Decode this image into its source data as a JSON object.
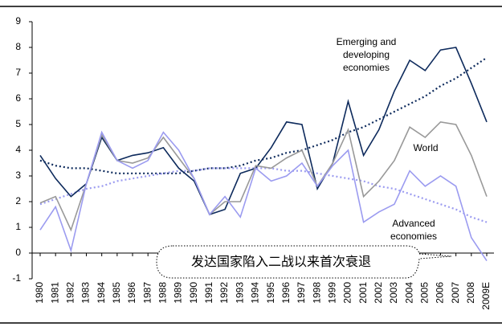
{
  "chart_data": {
    "type": "line",
    "categories": [
      "1980",
      "1981",
      "1982",
      "1983",
      "1984",
      "1985",
      "1986",
      "1987",
      "1988",
      "1989",
      "1990",
      "1991",
      "1992",
      "1993",
      "1994",
      "1995",
      "1996",
      "1997",
      "1998",
      "1999",
      "2000",
      "2001",
      "2002",
      "2003",
      "2004",
      "2005",
      "2006",
      "2007",
      "2008",
      "2009E"
    ],
    "series": [
      {
        "name": "Emerging and developing economies",
        "color": "#0d2a5c",
        "values": [
          3.8,
          2.9,
          2.2,
          2.7,
          4.5,
          3.6,
          3.8,
          3.9,
          4.1,
          3.3,
          2.8,
          1.5,
          1.7,
          3.1,
          3.3,
          4.1,
          5.1,
          5.0,
          2.5,
          3.5,
          5.9,
          3.8,
          4.8,
          6.3,
          7.5,
          7.1,
          7.9,
          8.0,
          6.6,
          5.1
        ]
      },
      {
        "name": "World",
        "color": "#999999",
        "values": [
          1.95,
          2.2,
          0.9,
          2.7,
          4.6,
          3.6,
          3.5,
          3.7,
          4.5,
          3.7,
          2.9,
          1.5,
          2.0,
          2.0,
          3.4,
          3.3,
          3.7,
          4.0,
          2.6,
          3.5,
          4.8,
          2.2,
          2.8,
          3.6,
          4.9,
          4.5,
          5.1,
          5.0,
          3.8,
          2.2
        ]
      },
      {
        "name": "Advanced economies",
        "color": "#9b9bf0",
        "values": [
          0.9,
          1.8,
          0.1,
          2.7,
          4.7,
          3.6,
          3.3,
          3.6,
          4.7,
          4.0,
          2.9,
          1.5,
          2.2,
          1.4,
          3.3,
          2.8,
          3.0,
          3.5,
          2.6,
          3.4,
          4.0,
          1.2,
          1.6,
          1.9,
          3.2,
          2.6,
          3.0,
          2.6,
          0.6,
          -0.3
        ]
      }
    ],
    "trendlines": [
      {
        "color": "#0d2a5c",
        "values": [
          3.6,
          3.4,
          3.3,
          3.3,
          3.2,
          3.1,
          3.1,
          3.1,
          3.1,
          3.1,
          3.2,
          3.3,
          3.3,
          3.4,
          3.6,
          3.7,
          3.9,
          4.0,
          4.2,
          4.4,
          4.7,
          4.9,
          5.2,
          5.5,
          5.8,
          6.1,
          6.5,
          6.8,
          7.2,
          7.6
        ]
      },
      {
        "color": "#9b9bf0",
        "values": [
          1.9,
          2.1,
          2.3,
          2.5,
          2.6,
          2.8,
          2.9,
          3.0,
          3.1,
          3.2,
          3.2,
          3.3,
          3.3,
          3.3,
          3.3,
          3.3,
          3.2,
          3.2,
          3.1,
          3.0,
          2.9,
          2.8,
          2.6,
          2.5,
          2.3,
          2.1,
          1.9,
          1.7,
          1.4,
          1.2
        ]
      }
    ],
    "annotation": "发达国家陷入二战以来首次衰退",
    "ylim": [
      -1,
      9
    ],
    "yticks": [
      -1,
      0,
      1,
      2,
      3,
      4,
      5,
      6,
      7,
      8,
      9
    ]
  }
}
